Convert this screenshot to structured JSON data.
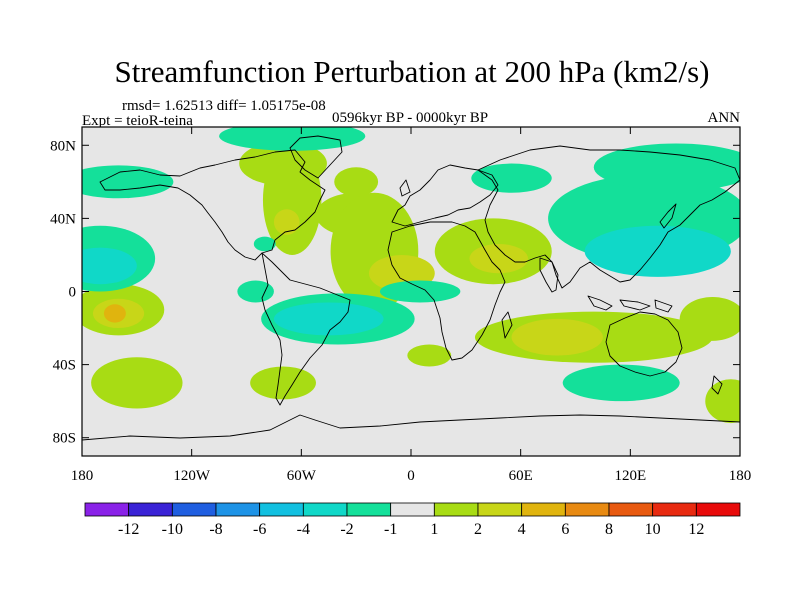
{
  "chart_data": {
    "type": "heatmap",
    "title": "Streamfunction Perturbation at 200 hPa (km2/s)",
    "stats": "rmsd= 1.62513 diff= 1.05175e-08",
    "experiment": "Expt = teioR-teina",
    "period": "0596kyr BP - 0000kyr BP",
    "season": "ANN",
    "x_ticks": [
      "180",
      "120W",
      "60W",
      "0",
      "60E",
      "120E",
      "180"
    ],
    "y_ticks": [
      "80N",
      "40N",
      "0",
      "40S",
      "80S"
    ],
    "x_range": [
      -180,
      180
    ],
    "y_range": [
      -90,
      90
    ],
    "levels": [
      -12,
      -10,
      -8,
      -6,
      -4,
      -2,
      -1,
      1,
      2,
      4,
      6,
      8,
      10,
      12
    ],
    "level_labels": [
      "-12",
      "-10",
      "-8",
      "-6",
      "-4",
      "-2",
      "-1",
      "1",
      "2",
      "4",
      "6",
      "8",
      "10",
      "12"
    ],
    "colors": [
      "#8a22e8",
      "#3a23d6",
      "#1f5ee0",
      "#1e93e6",
      "#12c0e0",
      "#10d8c8",
      "#14e09a",
      "#e6e6e6",
      "#a8dc14",
      "#c8d618",
      "#e0b40e",
      "#e88a12",
      "#e85a10",
      "#e82a10",
      "#e80a0a"
    ],
    "features": [
      {
        "lon": -30,
        "lat": 42,
        "rx": 22,
        "ry": 12,
        "level": 1
      },
      {
        "lon": -20,
        "lat": 22,
        "rx": 24,
        "ry": 32,
        "level": 1
      },
      {
        "lon": -5,
        "lat": 10,
        "rx": 18,
        "ry": 10,
        "level": 2
      },
      {
        "lon": 45,
        "lat": 22,
        "rx": 32,
        "ry": 18,
        "level": 1
      },
      {
        "lon": 48,
        "lat": 18,
        "rx": 16,
        "ry": 8,
        "level": 2
      },
      {
        "lon": -65,
        "lat": 50,
        "rx": 16,
        "ry": 30,
        "level": 1
      },
      {
        "lon": -68,
        "lat": 38,
        "rx": 7,
        "ry": 7,
        "level": 2
      },
      {
        "lon": -70,
        "lat": 70,
        "rx": 24,
        "ry": 12,
        "level": 1
      },
      {
        "lon": -160,
        "lat": -10,
        "rx": 25,
        "ry": 14,
        "level": 1
      },
      {
        "lon": -160,
        "lat": -12,
        "rx": 14,
        "ry": 8,
        "level": 2
      },
      {
        "lon": -162,
        "lat": -12,
        "rx": 6,
        "ry": 5,
        "level": 3
      },
      {
        "lon": -150,
        "lat": -50,
        "rx": 25,
        "ry": 14,
        "level": 1
      },
      {
        "lon": -70,
        "lat": -50,
        "rx": 18,
        "ry": 9,
        "level": 1
      },
      {
        "lon": 100,
        "lat": -25,
        "rx": 65,
        "ry": 14,
        "level": 1
      },
      {
        "lon": 80,
        "lat": -25,
        "rx": 25,
        "ry": 10,
        "level": 2
      },
      {
        "lon": 165,
        "lat": -15,
        "rx": 18,
        "ry": 12,
        "level": 1
      },
      {
        "lon": 10,
        "lat": -35,
        "rx": 12,
        "ry": 6,
        "level": 1
      },
      {
        "lon": 175,
        "lat": -60,
        "rx": 14,
        "ry": 12,
        "level": 1
      },
      {
        "lon": -30,
        "lat": 60,
        "rx": 12,
        "ry": 8,
        "level": 1
      },
      {
        "lon": 130,
        "lat": 40,
        "rx": 55,
        "ry": 24,
        "level": -1
      },
      {
        "lon": 135,
        "lat": 22,
        "rx": 40,
        "ry": 14,
        "level": -2
      },
      {
        "lon": 145,
        "lat": 68,
        "rx": 45,
        "ry": 13,
        "level": -1
      },
      {
        "lon": -170,
        "lat": 18,
        "rx": 30,
        "ry": 18,
        "level": -1
      },
      {
        "lon": -170,
        "lat": 14,
        "rx": 20,
        "ry": 10,
        "level": -2
      },
      {
        "lon": -160,
        "lat": 60,
        "rx": 30,
        "ry": 9,
        "level": -1
      },
      {
        "lon": -40,
        "lat": -15,
        "rx": 42,
        "ry": 14,
        "level": -1
      },
      {
        "lon": -45,
        "lat": -15,
        "rx": 30,
        "ry": 9,
        "level": -2
      },
      {
        "lon": 5,
        "lat": 0,
        "rx": 22,
        "ry": 6,
        "level": -1
      },
      {
        "lon": 115,
        "lat": -50,
        "rx": 32,
        "ry": 10,
        "level": -1
      },
      {
        "lon": -65,
        "lat": 85,
        "rx": 40,
        "ry": 8,
        "level": -1
      },
      {
        "lon": -85,
        "lat": 0,
        "rx": 10,
        "ry": 6,
        "level": -1
      },
      {
        "lon": 55,
        "lat": 62,
        "rx": 22,
        "ry": 8,
        "level": -1
      },
      {
        "lon": -80,
        "lat": 26,
        "rx": 6,
        "ry": 4,
        "level": -1
      }
    ]
  }
}
